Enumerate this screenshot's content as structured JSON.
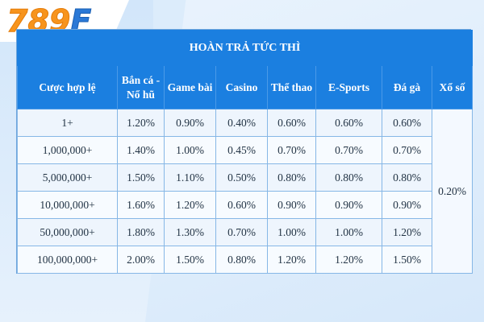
{
  "logo": {
    "part1": "789",
    "part2": "F"
  },
  "table": {
    "title": "HOÀN TRẢ TỨC THÌ",
    "headers": [
      "Cược hợp lệ",
      "Bắn cá -\nNổ hũ",
      "Game bài",
      "Casino",
      "Thể thao",
      "E-Sports",
      "Đá gà",
      "Xổ số"
    ],
    "rows": [
      [
        "1+",
        "1.20%",
        "0.90%",
        "0.40%",
        "0.60%",
        "0.60%",
        "0.60%"
      ],
      [
        "1,000,000+",
        "1.40%",
        "1.00%",
        "0.45%",
        "0.70%",
        "0.70%",
        "0.70%"
      ],
      [
        "5,000,000+",
        "1.50%",
        "1.10%",
        "0.50%",
        "0.80%",
        "0.80%",
        "0.80%"
      ],
      [
        "10,000,000+",
        "1.60%",
        "1.20%",
        "0.60%",
        "0.90%",
        "0.90%",
        "0.90%"
      ],
      [
        "50,000,000+",
        "1.80%",
        "1.30%",
        "0.70%",
        "1.00%",
        "1.00%",
        "1.20%"
      ],
      [
        "100,000,000+",
        "2.00%",
        "1.50%",
        "0.80%",
        "1.20%",
        "1.20%",
        "1.50%"
      ]
    ],
    "lottery_value": "0.20%"
  },
  "colors": {
    "header_bg": "#1b7fe0",
    "logo_orange": "#f7941d",
    "logo_blue": "#2a78d6"
  }
}
